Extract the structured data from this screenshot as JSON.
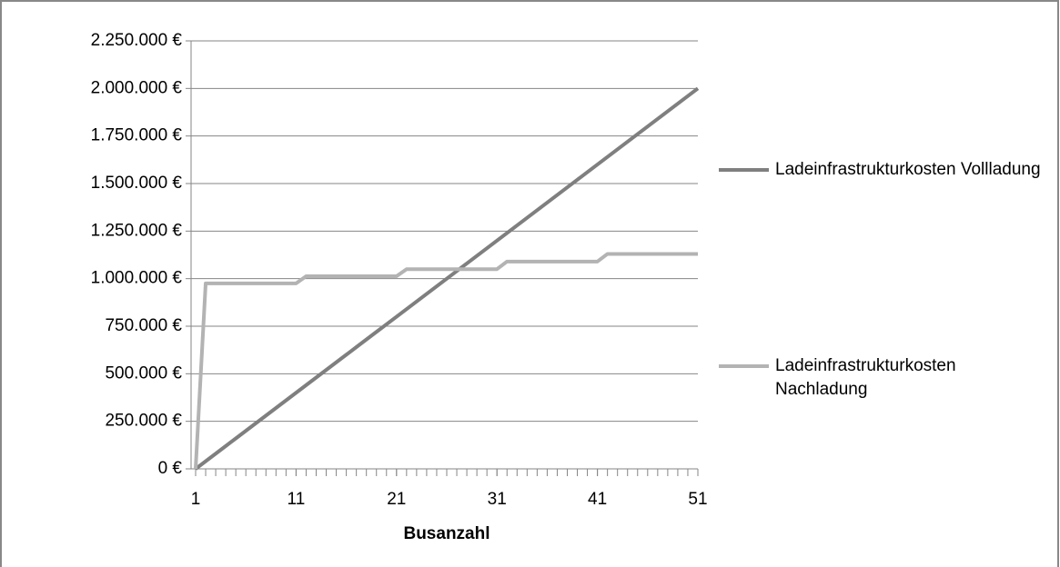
{
  "chart_data": {
    "type": "line",
    "x_label": "Busanzahl",
    "x": [
      1,
      2,
      3,
      4,
      5,
      6,
      7,
      8,
      9,
      10,
      11,
      12,
      13,
      14,
      15,
      16,
      17,
      18,
      19,
      20,
      21,
      22,
      23,
      24,
      25,
      26,
      27,
      28,
      29,
      30,
      31,
      32,
      33,
      34,
      35,
      36,
      37,
      38,
      39,
      40,
      41,
      42,
      43,
      44,
      45,
      46,
      47,
      48,
      49,
      50,
      51
    ],
    "xlim": [
      1,
      51
    ],
    "xticks": [
      1,
      11,
      21,
      31,
      41,
      51
    ],
    "ylim": [
      0,
      2250000
    ],
    "yticks": [
      {
        "value": 0,
        "label": "0 €"
      },
      {
        "value": 250000,
        "label": "250.000 €"
      },
      {
        "value": 500000,
        "label": "500.000 €"
      },
      {
        "value": 750000,
        "label": "750.000 €"
      },
      {
        "value": 1000000,
        "label": "1.000.000 €"
      },
      {
        "value": 1250000,
        "label": "1.250.000 €"
      },
      {
        "value": 1500000,
        "label": "1.500.000 €"
      },
      {
        "value": 1750000,
        "label": "1.750.000 €"
      },
      {
        "value": 2000000,
        "label": "2.000.000 €"
      },
      {
        "value": 2250000,
        "label": "2.250.000 €"
      }
    ],
    "grid": true,
    "legend": "right",
    "series": [
      {
        "name": "Ladeinfrastrukturkosten Vollladung",
        "color": "#7f7f7f",
        "values": [
          0,
          40000,
          80000,
          120000,
          160000,
          200000,
          240000,
          280000,
          320000,
          360000,
          400000,
          440000,
          480000,
          520000,
          560000,
          600000,
          640000,
          680000,
          720000,
          760000,
          800000,
          840000,
          880000,
          920000,
          960000,
          1000000,
          1040000,
          1080000,
          1120000,
          1160000,
          1200000,
          1240000,
          1280000,
          1320000,
          1360000,
          1400000,
          1440000,
          1480000,
          1520000,
          1560000,
          1600000,
          1640000,
          1680000,
          1720000,
          1760000,
          1800000,
          1840000,
          1880000,
          1920000,
          1960000,
          2000000
        ]
      },
      {
        "name": "Ladeinfrastrukturkosten Nachladung",
        "color": "#b3b3b3",
        "values": [
          0,
          975000,
          975000,
          975000,
          975000,
          975000,
          975000,
          975000,
          975000,
          975000,
          975000,
          1012500,
          1012500,
          1012500,
          1012500,
          1012500,
          1012500,
          1012500,
          1012500,
          1012500,
          1012500,
          1050000,
          1050000,
          1050000,
          1050000,
          1050000,
          1050000,
          1050000,
          1050000,
          1050000,
          1050000,
          1090000,
          1090000,
          1090000,
          1090000,
          1090000,
          1090000,
          1090000,
          1090000,
          1090000,
          1090000,
          1130000,
          1130000,
          1130000,
          1130000,
          1130000,
          1130000,
          1130000,
          1130000,
          1130000,
          1130000
        ]
      }
    ]
  }
}
